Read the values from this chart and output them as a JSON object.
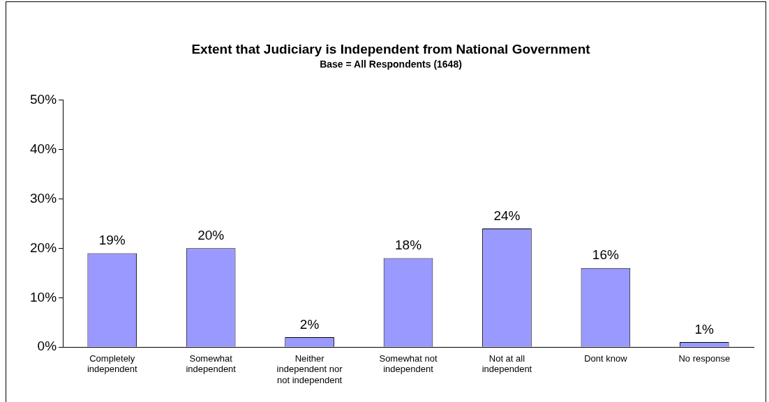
{
  "chart_data": {
    "type": "bar",
    "title": "Extent that Judiciary is Independent from National Government",
    "subtitle": "Base = All Respondents (1648)",
    "categories": [
      "Completely independent",
      "Somewhat independent",
      "Neither independent nor not independent",
      "Somewhat not independent",
      "Not at all independent",
      "Dont know",
      "No response"
    ],
    "values": [
      19,
      20,
      2,
      18,
      24,
      16,
      1
    ],
    "value_labels": [
      "19%",
      "20%",
      "2%",
      "18%",
      "24%",
      "16%",
      "1%"
    ],
    "color": "#9999ff",
    "ylim": [
      0,
      50
    ],
    "yticks": [
      {
        "value": 0,
        "label": "0%"
      },
      {
        "value": 10,
        "label": "10%"
      },
      {
        "value": 20,
        "label": "20%"
      },
      {
        "value": 30,
        "label": "30%"
      },
      {
        "value": 40,
        "label": "40%"
      },
      {
        "value": 50,
        "label": "50%"
      }
    ],
    "grid": false,
    "legend": false
  }
}
